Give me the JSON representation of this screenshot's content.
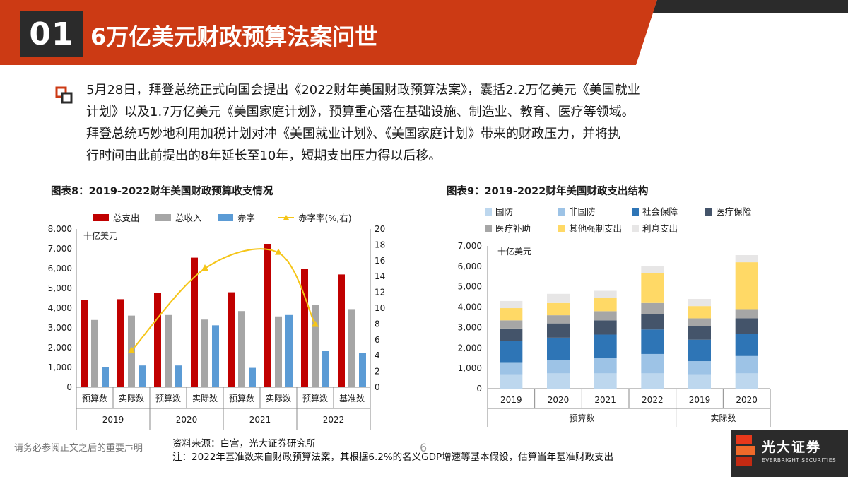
{
  "header": {
    "section_number": "01",
    "title": "6万亿美元财政预算法案问世",
    "colors": {
      "brand_red": "#cc3a14",
      "dark": "#2b2b2b"
    }
  },
  "body": {
    "bullet_icon": "square-bullet-icon",
    "lines": [
      "5月28日，拜登总统正式向国会提出《2022财年美国财政预算法案》，囊括2.2万亿美元《美国就业",
      "计划》以及1.7万亿美元《美国家庭计划》，预算重心落在基础设施、制造业、教育、医疗等领域。",
      "拜登总统巧妙地利用加税计划对冲《美国就业计划》、《美国家庭计划》带来的财政压力，并将执",
      "行时间由此前提出的8年延长至10年，短期支出压力得以后移。"
    ]
  },
  "chart_data": [
    {
      "type": "bar",
      "title": "图表8：2019-2022财年美国财政预算收支情况",
      "unit_label": "十亿美元",
      "categories": [
        "预算数",
        "实际数",
        "预算数",
        "实际数",
        "预算数",
        "实际数",
        "预算数",
        "基准数"
      ],
      "groups": [
        "2019",
        "2020",
        "2021",
        "2022"
      ],
      "series": [
        {
          "name": "总支出",
          "kind": "bar",
          "axis": "left",
          "color": "#c00000",
          "values": [
            4400,
            4450,
            4750,
            6550,
            4800,
            7250,
            6000,
            5700
          ]
        },
        {
          "name": "总收入",
          "kind": "bar",
          "axis": "left",
          "color": "#a6a6a6",
          "values": [
            3400,
            3620,
            3650,
            3420,
            3850,
            3580,
            4150,
            3950
          ]
        },
        {
          "name": "赤字",
          "kind": "bar",
          "axis": "left",
          "color": "#5b9bd5",
          "values": [
            1000,
            1100,
            1100,
            3130,
            980,
            3650,
            1850,
            1730
          ]
        },
        {
          "name": "赤字率(%,右)",
          "kind": "line",
          "axis": "right",
          "color": "#f5c518",
          "points": [
            [
              1,
              4.6
            ],
            [
              3,
              15
            ],
            [
              5,
              17
            ],
            [
              6,
              7.9
            ]
          ]
        }
      ],
      "ylim_left": [
        0,
        8000
      ],
      "yticks_left": [
        "8,000",
        "7,000",
        "6,000",
        "5,000",
        "4,000",
        "3,000",
        "2,000",
        "1,000",
        "0"
      ],
      "ylim_right": [
        0,
        20
      ],
      "yticks_right": [
        "20",
        "18",
        "16",
        "14",
        "12",
        "10",
        "8",
        "6",
        "4",
        "2",
        "0"
      ],
      "legend_position": "top"
    },
    {
      "type": "bar",
      "stacked": true,
      "title": "图表9：2019-2022财年美国财政支出结构",
      "unit_label": "十亿美元",
      "categories": [
        "2019",
        "2020",
        "2021",
        "2022",
        "2019",
        "2020"
      ],
      "groups": [
        "预算数",
        "实际数"
      ],
      "series": [
        {
          "name": "国防",
          "color": "#bdd7ee",
          "values": [
            700,
            750,
            750,
            750,
            700,
            750
          ]
        },
        {
          "name": "非国防",
          "color": "#9dc3e6",
          "values": [
            600,
            650,
            750,
            950,
            650,
            850
          ]
        },
        {
          "name": "社会保障",
          "color": "#2e75b6",
          "values": [
            1050,
            1100,
            1150,
            1200,
            1050,
            1100
          ]
        },
        {
          "name": "医疗保险",
          "color": "#44546a",
          "values": [
            600,
            700,
            700,
            750,
            650,
            750
          ]
        },
        {
          "name": "医疗补助",
          "color": "#a6a6a6",
          "values": [
            400,
            400,
            450,
            550,
            400,
            450
          ]
        },
        {
          "name": "其他强制支出",
          "color": "#ffd966",
          "values": [
            600,
            600,
            650,
            1450,
            600,
            2300
          ]
        },
        {
          "name": "利息支出",
          "color": "#e7e6e6",
          "values": [
            350,
            450,
            350,
            350,
            350,
            350
          ]
        }
      ],
      "ylim": [
        0,
        7000
      ],
      "yticks": [
        "7,000",
        "6,000",
        "5,000",
        "4,000",
        "3,000",
        "2,000",
        "1,000",
        "0"
      ],
      "legend_position": "top"
    }
  ],
  "footer": {
    "disclaimer": "请务必参阅正文之后的重要声明",
    "source_line1": "资料来源：白宫，光大证券研究所",
    "source_line2": "注：2022年基准数来自财政预算法案，其根据6.2%的名义GDP增速等基本假设，估算当年基准财政支出",
    "page_number": "6",
    "logo_cn": "光大证券",
    "logo_en": "EVERBRIGHT SECURITIES"
  }
}
